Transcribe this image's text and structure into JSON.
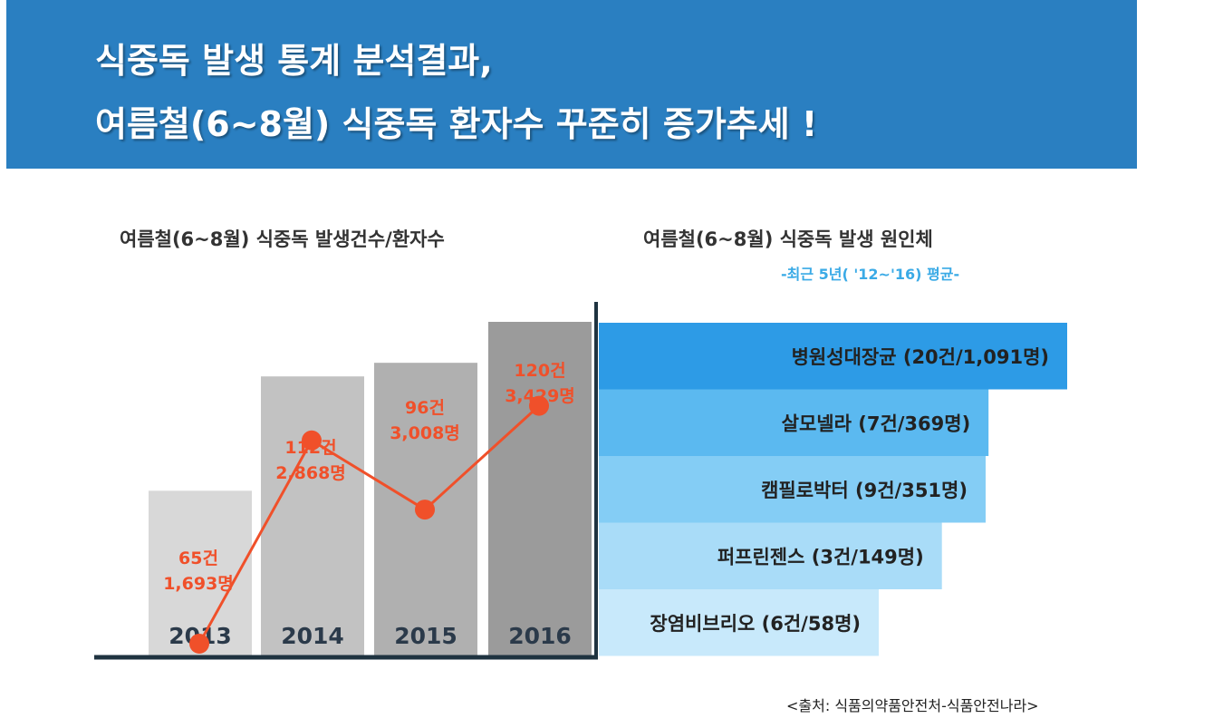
{
  "header": {
    "line1": "식중독 발생 통계 분석결과,",
    "line2": "여름철(6~8월) 식중독 환자수 꾸준히 증가추세 !"
  },
  "left_title": "여름철(6~8월) 식중독 발생건수/환자수",
  "right_title": "여름철(6~8월) 식중독 발생 원인체",
  "right_subtitle": "-최근 5년( '12~'16) 평균-",
  "source": "<출처: 식품의약품안전처-식품안전나라>",
  "chart_data": [
    {
      "type": "bar",
      "title": "여름철(6~8월) 식중독 발생건수/환자수",
      "categories": [
        "2013",
        "2014",
        "2015",
        "2016"
      ],
      "series": [
        {
          "values": [
            65,
            112,
            96,
            120
          ],
          "labels": [
            "65건",
            "112건",
            "96건",
            "120건"
          ],
          "color": "#f0502a"
        },
        {
          "values": [
            1693,
            2868,
            3008,
            3429
          ],
          "labels": [
            "1,693명",
            "2,868명",
            "3,008명",
            "3,429명"
          ],
          "color": "#f0502a"
        }
      ],
      "bar_colors": [
        "#d8d8d8",
        "#c2c2c2",
        "#b0b0b0",
        "#9b9b9b"
      ]
    },
    {
      "type": "bar",
      "title": "여름철(6~8월) 식중독 발생 원인체",
      "subtitle": "-최근 5년( '12~'16) 평균-",
      "orientation": "horizontal",
      "categories": [
        "병원성대장균",
        "살모넬라",
        "캠필로박터",
        "퍼프린젠스",
        "장염비브리오"
      ],
      "labels": [
        "병원성대장균 (20건/1,091명)",
        "살모넬라 (7건/369명)",
        "캠필로박터 (9건/351명)",
        "퍼프린젠스 (3건/149명)",
        "장염비브리오 (6건/58명)"
      ],
      "cases": [
        20,
        7,
        9,
        3,
        6
      ],
      "patients": [
        1091,
        369,
        351,
        149,
        58
      ],
      "colors": [
        "#2d9be6",
        "#5bb9f0",
        "#84cdf5",
        "#a9dcf8",
        "#c8e9fb"
      ]
    }
  ]
}
